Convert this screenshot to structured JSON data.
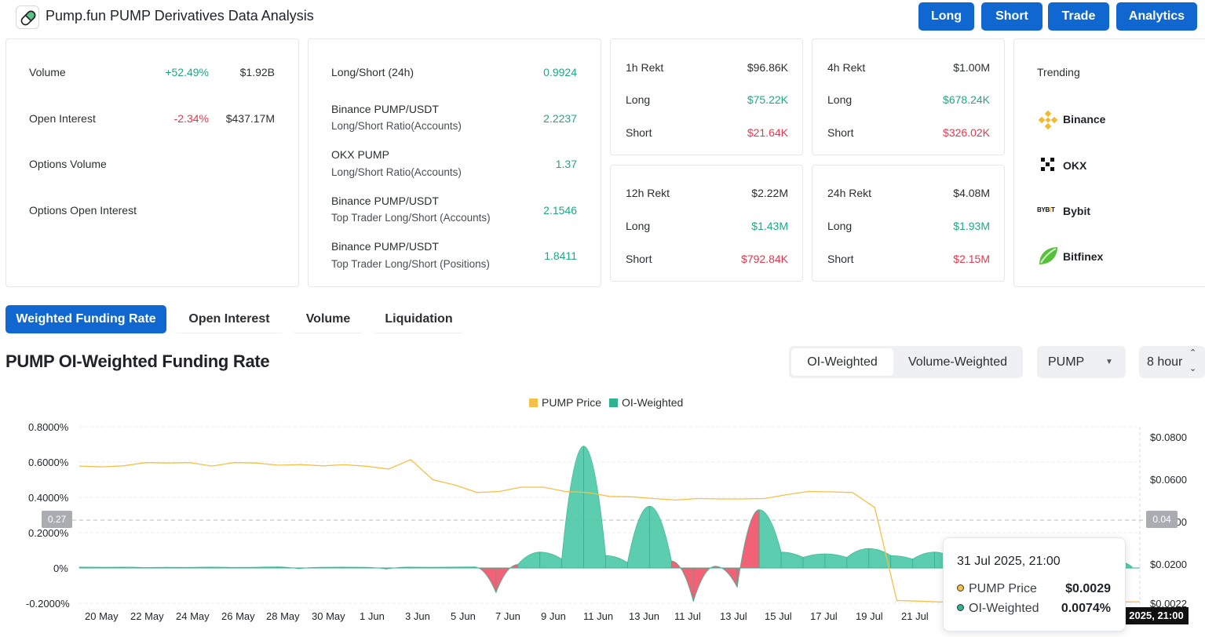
{
  "header": {
    "title": "Pump.fun PUMP Derivatives Data Analysis",
    "nav": [
      "Long",
      "Short",
      "Trade",
      "Analytics"
    ]
  },
  "overview": {
    "volume": {
      "label": "Volume",
      "change": "+52.49%",
      "value": "$1.92B"
    },
    "open_interest": {
      "label": "Open Interest",
      "change": "-2.34%",
      "value": "$437.17M"
    },
    "options_volume": {
      "label": "Options Volume"
    },
    "options_open_interest": {
      "label": "Options Open Interest"
    }
  },
  "ratios": [
    {
      "label": "Long/Short (24h)",
      "sub": "",
      "value": "0.9924"
    },
    {
      "label": "Binance PUMP/USDT",
      "sub": "Long/Short Ratio(Accounts)",
      "value": "2.2237"
    },
    {
      "label": "OKX PUMP",
      "sub": "Long/Short Ratio(Accounts)",
      "value": "1.37"
    },
    {
      "label": "Binance PUMP/USDT",
      "sub": "Top Trader Long/Short (Accounts)",
      "value": "2.1546"
    },
    {
      "label": "Binance PUMP/USDT",
      "sub": "Top Trader Long/Short (Positions)",
      "value": "1.8411"
    }
  ],
  "rekt": [
    {
      "title": "1h Rekt",
      "total": "$96.86K",
      "long_label": "Long",
      "long": "$75.22K",
      "short_label": "Short",
      "short": "$21.64K"
    },
    {
      "title": "4h Rekt",
      "total": "$1.00M",
      "long_label": "Long",
      "long": "$678.24K",
      "short_label": "Short",
      "short": "$326.02K"
    },
    {
      "title": "12h Rekt",
      "total": "$2.22M",
      "long_label": "Long",
      "long": "$1.43M",
      "short_label": "Short",
      "short": "$792.84K"
    },
    {
      "title": "24h Rekt",
      "total": "$4.08M",
      "long_label": "Long",
      "long": "$1.93M",
      "short_label": "Short",
      "short": "$2.15M"
    }
  ],
  "trending": {
    "title": "Trending",
    "items": [
      {
        "name": "Binance",
        "icon": "binance-icon"
      },
      {
        "name": "OKX",
        "icon": "okx-icon"
      },
      {
        "name": "Bybit",
        "icon": "bybit-icon"
      },
      {
        "name": "Bitfinex",
        "icon": "bitfinex-icon"
      }
    ]
  },
  "tabs": [
    "Weighted Funding Rate",
    "Open Interest",
    "Volume",
    "Liquidation"
  ],
  "section": {
    "title": "PUMP OI-Weighted Funding Rate",
    "segments": [
      "OI-Weighted",
      "Volume-Weighted"
    ],
    "coin_select": "PUMP",
    "interval_select": "8 hour"
  },
  "chart_data": {
    "type": "line",
    "legend": [
      "PUMP Price",
      "OI-Weighted"
    ],
    "colors": {
      "price": "#f5c04a",
      "positive": "#4fc9a8",
      "negative": "#f0556b"
    },
    "y_left_ticks": [
      "0.8000%",
      "0.6000%",
      "0.4000%",
      "0.2000%",
      "0%",
      "-0.2000%"
    ],
    "y_left_range": [
      -0.2,
      0.8
    ],
    "y_right_ticks": [
      "$0.0800",
      "$0.0600",
      "$0.0400",
      "$0.0200",
      "$0.0022"
    ],
    "x_ticks": [
      "20 May",
      "22 May",
      "24 May",
      "26 May",
      "28 May",
      "30 May",
      "1 Jun",
      "3 Jun",
      "5 Jun",
      "7 Jun",
      "9 Jun",
      "11 Jun",
      "13 Jun",
      "11 Jul",
      "13 Jul",
      "15 Jul",
      "17 Jul",
      "19 Jul",
      "21 Jul"
    ],
    "price_series": [
      0.0664,
      0.066,
      0.0665,
      0.068,
      0.0678,
      0.068,
      0.0664,
      0.068,
      0.0678,
      0.0668,
      0.0671,
      0.0665,
      0.067,
      0.0663,
      0.065,
      0.0694,
      0.06,
      0.0575,
      0.054,
      0.0545,
      0.0565,
      0.0565,
      0.0545,
      0.054,
      0.0522,
      0.052,
      0.0512,
      0.0505,
      0.0512,
      0.051,
      0.051,
      0.0512,
      0.053,
      0.0545,
      0.0543,
      0.054,
      0.047,
      0.0035,
      0.0032,
      0.0028,
      0.0034,
      0.003,
      0.0027,
      0.0032,
      0.003,
      0.0029,
      0.0028,
      0.0028,
      0.0029
    ],
    "funding_series": [
      0.005,
      0.004,
      0.005,
      0.002,
      0.004,
      0.003,
      0.005,
      0.003,
      0.004,
      0.006,
      -0.004,
      0.004,
      0.005,
      0.004,
      -0.006,
      0.005,
      0.004,
      0.005,
      0.006,
      -0.14,
      0.02,
      0.09,
      0.05,
      0.69,
      0.07,
      0.03,
      0.35,
      0.04,
      -0.19,
      0.01,
      -0.11,
      0.33,
      0.09,
      0.06,
      0.08,
      0.06,
      0.11,
      0.07,
      0.05,
      0.09,
      0.04,
      0.07,
      0.03,
      0.06,
      0.04,
      0.05,
      0.07,
      0.05,
      0.0074
    ],
    "crosshair": {
      "left_value": "0.27",
      "right_value": "0.04",
      "x_label": "2025, 21:00"
    }
  },
  "tooltip": {
    "title": "31 Jul 2025, 21:00",
    "rows": [
      {
        "label": "PUMP Price",
        "value": "$0.0029",
        "color": "#f5c04a"
      },
      {
        "label": "OI-Weighted",
        "value": "0.0074%",
        "color": "#2fb38f"
      }
    ]
  }
}
